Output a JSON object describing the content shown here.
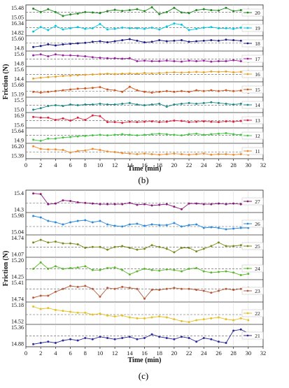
{
  "caption_b": "(b)",
  "caption_c": "(c)",
  "chart_data": [
    {
      "id": "panel-b",
      "type": "line",
      "xlabel": "Time (min)",
      "ylabel": "Friction (N)",
      "xlim": [
        0,
        32
      ],
      "xticks": [
        0,
        2,
        4,
        6,
        8,
        10,
        12,
        14,
        16,
        18,
        20,
        22,
        24,
        26,
        28,
        30,
        32
      ],
      "x": [
        1,
        2,
        3,
        4,
        5,
        6,
        7,
        8,
        9,
        10,
        11,
        12,
        13,
        14,
        15,
        16,
        17,
        18,
        19,
        20,
        21,
        22,
        23,
        24,
        25,
        26,
        27,
        28,
        29,
        30
      ],
      "series": [
        {
          "name": "20",
          "color": "#1e8a1e",
          "yticks": [
            "15.48",
            "15.05"
          ],
          "ylim": [
            14.95,
            15.6
          ],
          "ref": 15.3,
          "values": [
            15.48,
            15.3,
            15.45,
            15.3,
            15.1,
            15.18,
            15.22,
            15.3,
            15.28,
            15.25,
            15.35,
            15.42,
            15.36,
            15.4,
            15.45,
            15.35,
            15.55,
            15.2,
            15.3,
            15.52,
            15.28,
            15.25,
            15.4,
            15.45,
            15.4,
            15.38,
            15.52,
            15.35,
            15.4,
            15.42
          ]
        },
        {
          "name": "19",
          "color": "#00c8e0",
          "yticks": [
            "16.34",
            "14.82"
          ],
          "ylim": [
            14.5,
            16.6
          ],
          "ref": 15.6,
          "values": [
            14.95,
            15.7,
            15.2,
            15.9,
            15.3,
            15.5,
            15.7,
            15.4,
            15.5,
            16.2,
            15.3,
            15.4,
            15.6,
            15.5,
            15.5,
            15.4,
            15.6,
            15.3,
            15.8,
            16.3,
            16.1,
            15.2,
            15.4,
            15.6,
            15.7,
            15.5,
            15.5,
            15.4,
            15.6,
            15.5
          ]
        },
        {
          "name": "18",
          "color": "#1a1a8c",
          "yticks": [
            "15.60",
            "14.8"
          ],
          "ylim": [
            14.6,
            15.8
          ],
          "ref": 15.25,
          "values": [
            14.85,
            14.95,
            15.1,
            15.0,
            15.1,
            15.15,
            15.2,
            15.25,
            15.35,
            15.4,
            15.3,
            15.4,
            15.5,
            15.6,
            15.45,
            15.3,
            15.35,
            15.5,
            15.4,
            15.45,
            15.5,
            15.35,
            15.4,
            15.45,
            15.5,
            15.45,
            15.55,
            15.5,
            15.45,
            15.3
          ]
        },
        {
          "name": "17",
          "color": "#9b1fa0",
          "yticks": [
            "15.6",
            "14.8"
          ],
          "ylim": [
            14.6,
            15.9
          ],
          "ref": 15.2,
          "values": [
            15.6,
            15.7,
            15.5,
            15.7,
            15.6,
            15.6,
            15.55,
            15.5,
            15.4,
            15.35,
            15.3,
            15.3,
            15.25,
            15.3,
            15.0,
            15.05,
            15.0,
            15.0,
            15.05,
            15.0,
            14.95,
            15.05,
            15.0,
            15.05,
            14.95,
            15.0,
            15.0,
            15.1,
            15.0,
            14.95
          ]
        },
        {
          "name": "16",
          "color": "#e8a020",
          "yticks": [
            "15.6",
            "14.4"
          ],
          "ylim": [
            14.2,
            15.9
          ],
          "ref": 15.0,
          "values": [
            14.45,
            14.55,
            14.65,
            14.7,
            14.8,
            14.85,
            14.9,
            14.95,
            15.0,
            15.05,
            15.1,
            15.05,
            15.1,
            15.15,
            15.1,
            15.2,
            15.15,
            15.2,
            15.25,
            15.3,
            15.25,
            15.3,
            15.35,
            15.3,
            15.4,
            15.35,
            15.4,
            15.3,
            15.35,
            15.45
          ]
        },
        {
          "name": "15",
          "color": "#d4541a",
          "yticks": [
            "15.68",
            "15.19"
          ],
          "ylim": [
            15.05,
            15.85
          ],
          "ref": 15.35,
          "values": [
            15.3,
            15.25,
            15.3,
            15.35,
            15.4,
            15.45,
            15.5,
            15.52,
            15.55,
            15.6,
            15.45,
            15.4,
            15.3,
            15.62,
            15.4,
            15.3,
            15.25,
            15.3,
            15.35,
            15.3,
            15.35,
            15.3,
            15.4,
            15.35,
            15.4,
            15.35,
            15.4,
            15.35,
            15.38,
            15.25
          ]
        },
        {
          "name": "14",
          "color": "#1a8a8a",
          "yticks": [
            "15.5",
            "15.0"
          ],
          "ylim": [
            14.85,
            15.7
          ],
          "ref": 15.25,
          "values": [
            14.95,
            15.05,
            15.2,
            15.25,
            15.2,
            15.3,
            15.25,
            15.3,
            15.3,
            15.35,
            15.3,
            15.3,
            15.35,
            15.4,
            15.3,
            15.25,
            15.3,
            15.35,
            15.15,
            15.3,
            15.35,
            15.4,
            15.35,
            15.4,
            15.45,
            15.4,
            15.35,
            15.3,
            15.35,
            15.4
          ]
        },
        {
          "name": "13",
          "color": "#e0203a",
          "yticks": [
            "16.9",
            "15.6"
          ],
          "ylim": [
            15.4,
            17.1
          ],
          "ref": 16.2,
          "values": [
            16.7,
            16.6,
            16.6,
            16.3,
            16.5,
            16.2,
            16.6,
            16.3,
            16.9,
            16.8,
            16.0,
            16.0,
            15.9,
            16.05,
            16.0,
            16.05,
            16.1,
            16.0,
            16.05,
            16.2,
            16.15,
            16.0,
            16.05,
            16.1,
            16.05,
            16.0,
            16.1,
            16.05,
            16.15,
            16.05
          ]
        },
        {
          "name": "12",
          "color": "#3cc83c",
          "yticks": [
            "15.64",
            "14.9"
          ],
          "ylim": [
            14.7,
            15.85
          ],
          "ref": 15.3,
          "values": [
            14.9,
            14.8,
            15.0,
            15.0,
            15.1,
            15.15,
            15.2,
            15.25,
            15.3,
            15.35,
            15.3,
            15.35,
            15.4,
            15.35,
            15.3,
            15.35,
            15.4,
            15.45,
            15.4,
            15.35,
            15.3,
            15.4,
            15.45,
            15.35,
            15.4,
            15.45,
            15.5,
            15.4,
            15.35,
            15.4
          ]
        },
        {
          "name": "11",
          "color": "#f08a2a",
          "yticks": [
            "16.20",
            "15.39"
          ],
          "ylim": [
            15.2,
            16.4
          ],
          "ref": 15.7,
          "values": [
            16.25,
            16.0,
            15.95,
            15.95,
            15.9,
            15.65,
            15.8,
            15.85,
            16.0,
            15.9,
            15.75,
            15.7,
            15.6,
            15.55,
            15.5,
            15.55,
            15.5,
            15.45,
            15.5,
            15.55,
            15.5,
            15.45,
            15.5,
            15.55,
            15.45,
            15.5,
            15.5,
            15.45,
            15.5,
            15.45
          ]
        }
      ]
    },
    {
      "id": "panel-c",
      "type": "line",
      "xlabel": "Time (min)",
      "ylabel": "Friction (N)",
      "xlim": [
        0,
        32
      ],
      "xticks": [
        0,
        2,
        4,
        6,
        8,
        10,
        12,
        14,
        16,
        18,
        20,
        22,
        24,
        26,
        28,
        30,
        32
      ],
      "x": [
        1,
        2,
        3,
        4,
        5,
        6,
        7,
        8,
        9,
        10,
        11,
        12,
        13,
        14,
        15,
        16,
        17,
        18,
        19,
        20,
        21,
        22,
        23,
        24,
        25,
        26,
        27,
        28,
        29,
        30
      ],
      "series": [
        {
          "name": "27",
          "color": "#8a1a7a",
          "yticks": [
            "15.4",
            "14.3"
          ],
          "ylim": [
            14.05,
            15.6
          ],
          "ref": 14.7,
          "values": [
            15.45,
            15.4,
            14.6,
            14.65,
            14.9,
            14.85,
            14.75,
            14.7,
            14.65,
            14.6,
            14.6,
            14.6,
            14.6,
            14.7,
            14.55,
            14.6,
            14.5,
            14.55,
            14.6,
            14.4,
            14.2,
            14.65,
            14.65,
            14.6,
            14.6,
            14.65,
            14.6,
            14.65,
            14.6,
            14.65
          ]
        },
        {
          "name": "26",
          "color": "#2a8ae0",
          "yticks": [
            "15.98",
            "15.04"
          ],
          "ylim": [
            14.8,
            16.2
          ],
          "ref": 15.3,
          "values": [
            16.05,
            15.95,
            15.7,
            15.6,
            15.45,
            15.6,
            15.7,
            15.75,
            15.6,
            15.7,
            15.45,
            15.35,
            15.3,
            15.45,
            15.5,
            15.35,
            15.45,
            15.4,
            15.4,
            15.55,
            15.3,
            15.4,
            15.45,
            15.2,
            15.25,
            15.2,
            15.1,
            15.15,
            15.2,
            15.2
          ]
        },
        {
          "name": "25",
          "color": "#7a8a1a",
          "yticks": [
            "14.74",
            "14.07"
          ],
          "ylim": [
            13.85,
            14.95
          ],
          "ref": 14.35,
          "values": [
            14.6,
            14.75,
            14.6,
            14.65,
            14.55,
            14.55,
            14.5,
            14.3,
            14.35,
            14.35,
            14.2,
            14.35,
            14.4,
            14.3,
            14.2,
            14.25,
            14.45,
            14.35,
            14.25,
            14.05,
            14.3,
            14.3,
            14.1,
            14.25,
            14.4,
            14.6,
            14.4,
            14.4,
            14.45,
            14.55
          ]
        },
        {
          "name": "24",
          "color": "#5ab82a",
          "yticks": [
            "15.20",
            "14.25"
          ],
          "ylim": [
            13.95,
            15.5
          ],
          "ref": 14.7,
          "values": [
            14.7,
            15.2,
            14.7,
            14.9,
            14.7,
            14.75,
            14.8,
            14.9,
            14.6,
            14.6,
            14.75,
            14.8,
            14.6,
            14.25,
            14.5,
            14.7,
            14.6,
            14.55,
            14.65,
            14.6,
            14.5,
            14.7,
            14.75,
            14.5,
            14.4,
            14.45,
            14.5,
            14.4,
            14.2,
            14.3
          ]
        },
        {
          "name": "23",
          "color": "#b85a3a",
          "yticks": [
            "15.41",
            "14.74"
          ],
          "ylim": [
            14.55,
            15.55
          ],
          "ref": 15.15,
          "values": [
            14.7,
            14.8,
            14.8,
            15.0,
            15.15,
            15.3,
            15.25,
            15.3,
            15.15,
            14.75,
            15.2,
            15.15,
            15.25,
            15.2,
            15.15,
            14.65,
            15.1,
            15.1,
            15.15,
            15.2,
            15.15,
            15.15,
            15.1,
            15.05,
            14.95,
            15.05,
            15.15,
            15.1,
            15.15,
            15.2
          ]
        },
        {
          "name": "22",
          "color": "#e6c020",
          "yticks": [
            "15.18",
            "14.52"
          ],
          "ylim": [
            14.3,
            15.35
          ],
          "ref": 14.75,
          "values": [
            15.18,
            15.05,
            15.1,
            15.0,
            14.95,
            14.9,
            14.85,
            14.85,
            14.75,
            14.8,
            14.7,
            14.65,
            14.7,
            14.6,
            14.55,
            14.55,
            14.6,
            14.65,
            14.6,
            14.5,
            14.4,
            14.35,
            14.45,
            14.5,
            14.55,
            14.6,
            14.5,
            14.45,
            14.55,
            14.45
          ]
        },
        {
          "name": "21",
          "color": "#2a2aa0",
          "yticks": [
            "15.36",
            "14.88"
          ],
          "ylim": [
            14.7,
            15.5
          ],
          "ref": 15.08,
          "values": [
            14.75,
            14.8,
            14.85,
            14.8,
            14.9,
            14.95,
            14.9,
            15.0,
            14.95,
            15.05,
            15.0,
            14.95,
            15.0,
            15.05,
            14.95,
            15.0,
            15.15,
            15.05,
            15.0,
            14.95,
            15.05,
            15.0,
            14.85,
            15.0,
            14.95,
            14.85,
            14.8,
            15.3,
            15.35,
            15.2
          ]
        }
      ]
    }
  ]
}
